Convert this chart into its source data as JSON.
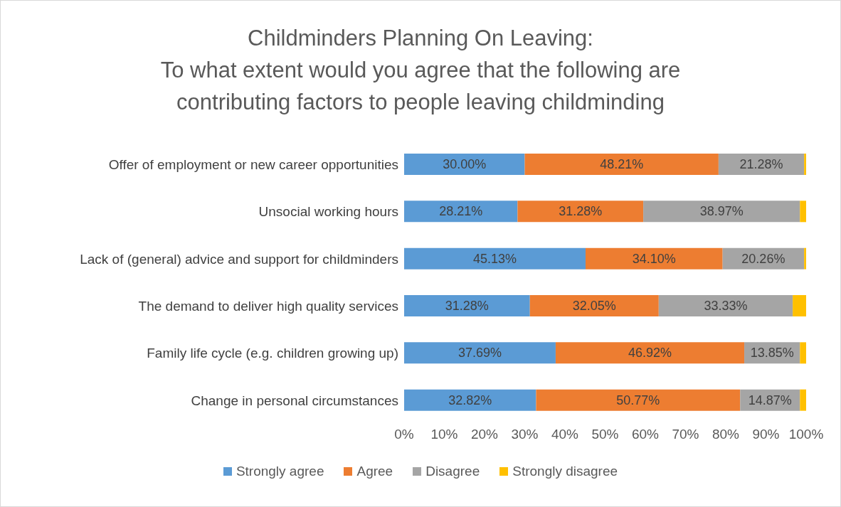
{
  "chart_data": {
    "type": "bar",
    "orientation": "horizontal",
    "stacked": true,
    "title": "Childminders Planning On Leaving:\nTo what extent would you agree that the following are\ncontributing factors to people leaving childminding",
    "categories": [
      "Offer of employment or new career opportunities",
      "Unsocial working hours",
      "Lack of (general) advice and support for childminders",
      "The demand to deliver high quality services",
      "Family life cycle (e.g. children growing up)",
      "Change in personal circumstances"
    ],
    "series": [
      {
        "name": "Strongly agree",
        "color": "#5b9bd5",
        "values": [
          30.0,
          28.21,
          45.13,
          31.28,
          37.69,
          32.82
        ],
        "value_labels": [
          "30.00%",
          "28.21%",
          "45.13%",
          "31.28%",
          "37.69%",
          "32.82%"
        ]
      },
      {
        "name": "Agree",
        "color": "#ed7d31",
        "values": [
          48.21,
          31.28,
          34.1,
          32.05,
          46.92,
          50.77
        ],
        "value_labels": [
          "48.21%",
          "31.28%",
          "34.10%",
          "32.05%",
          "46.92%",
          "50.77%"
        ]
      },
      {
        "name": "Disagree",
        "color": "#a5a5a5",
        "values": [
          21.28,
          38.97,
          20.26,
          33.33,
          13.85,
          14.87
        ],
        "value_labels": [
          "21.28%",
          "38.97%",
          "20.26%",
          "33.33%",
          "13.85%",
          "14.87%"
        ]
      },
      {
        "name": "Strongly disagree",
        "color": "#ffc000",
        "values": [
          0.51,
          1.54,
          0.51,
          3.34,
          1.54,
          1.54
        ]
      }
    ],
    "xlim": [
      0,
      100
    ],
    "xticks": [
      {
        "value": 0,
        "label": "0%"
      },
      {
        "value": 10,
        "label": "10%"
      },
      {
        "value": 20,
        "label": "20%"
      },
      {
        "value": 30,
        "label": "30%"
      },
      {
        "value": 40,
        "label": "40%"
      },
      {
        "value": 50,
        "label": "50%"
      },
      {
        "value": 60,
        "label": "60%"
      },
      {
        "value": 70,
        "label": "70%"
      },
      {
        "value": 80,
        "label": "80%"
      },
      {
        "value": 90,
        "label": "90%"
      },
      {
        "value": 100,
        "label": "100%"
      }
    ],
    "grid": false,
    "legend": "bottom"
  }
}
